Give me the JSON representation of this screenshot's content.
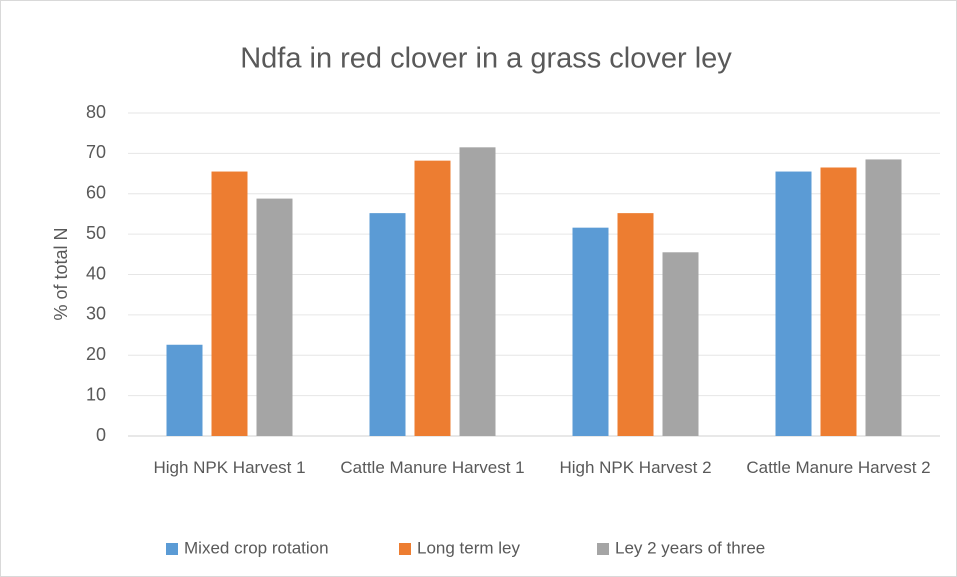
{
  "chart_data": {
    "type": "bar",
    "title": "Ndfa in red clover in a grass clover ley",
    "y_label": "% of total N",
    "categories": [
      "High NPK Harvest 1",
      "Cattle Manure Harvest 1",
      "High NPK Harvest 2",
      "Cattle Manure Harvest 2"
    ],
    "series": [
      {
        "name": "Mixed crop rotation",
        "color": "#5b9bd5",
        "values": [
          22.6,
          55.2,
          51.6,
          65.5
        ]
      },
      {
        "name": "Long term ley",
        "color": "#ed7d31",
        "values": [
          65.5,
          68.2,
          55.2,
          66.5
        ]
      },
      {
        "name": "Ley 2 years of three",
        "color": "#a5a5a5",
        "values": [
          58.8,
          71.5,
          45.5,
          68.5
        ]
      }
    ],
    "ylim": [
      0,
      80
    ],
    "yticks": [
      0,
      10,
      20,
      30,
      40,
      50,
      60,
      70,
      80
    ],
    "grid": true,
    "legend": "bottom"
  }
}
